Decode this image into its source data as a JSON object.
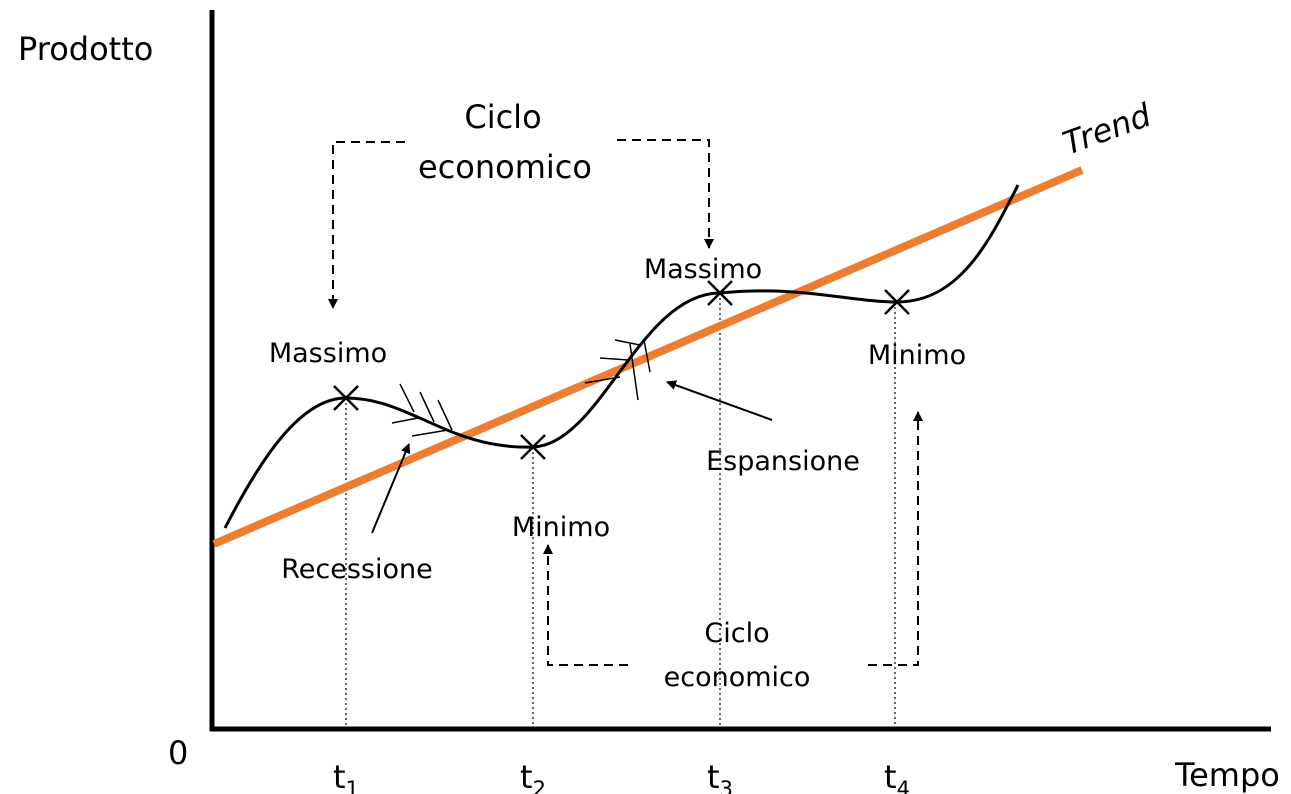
{
  "y_axis_label": "Prodotto",
  "x_axis_label": "Tempo",
  "origin": "0",
  "trend": "Trend",
  "ticks": [
    {
      "base": "t",
      "sub": "1"
    },
    {
      "base": "t",
      "sub": "2"
    },
    {
      "base": "t",
      "sub": "3"
    },
    {
      "base": "t",
      "sub": "4"
    }
  ],
  "cycle_top": {
    "line1": "Ciclo",
    "line2": "economico"
  },
  "cycle_bottom": {
    "line1": "Ciclo",
    "line2": "economico"
  },
  "peaks": [
    "Massimo",
    "Massimo"
  ],
  "troughs": [
    "Minimo",
    "Minimo"
  ],
  "recession": "Recessione",
  "expansion": "Espansione"
}
